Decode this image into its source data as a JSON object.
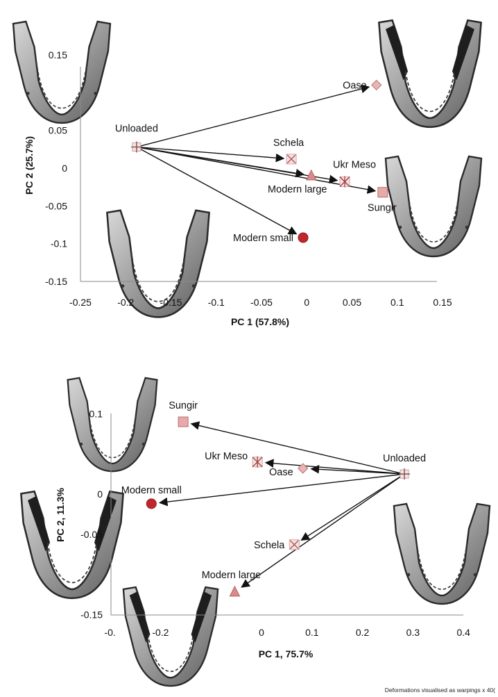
{
  "chart_data": [
    {
      "type": "scatter",
      "xlabel": "PC 1 (57.8%)",
      "ylabel": "PC 2 (25.7%)",
      "xlim": [
        -0.25,
        0.15
      ],
      "ylim": [
        -0.15,
        0.15
      ],
      "xticks": [
        "-0.25",
        "-0.2",
        "-0.15",
        "-0.1",
        "-0.05",
        "0",
        "0.05",
        "0.1",
        "0.15"
      ],
      "yticks": [
        "0.15",
        "0.05",
        "0",
        "-0.05",
        "-0.1",
        "-0.15"
      ],
      "origin": "Unloaded",
      "points": [
        {
          "label": "Unloaded",
          "x": -0.188,
          "y": 0.028,
          "marker": "plus"
        },
        {
          "label": "Oase",
          "x": 0.077,
          "y": 0.11,
          "marker": "diamond"
        },
        {
          "label": "Schela",
          "x": -0.017,
          "y": 0.012,
          "marker": "cross"
        },
        {
          "label": "Ukr Meso",
          "x": 0.042,
          "y": -0.018,
          "marker": "star"
        },
        {
          "label": "Modern large",
          "x": 0.005,
          "y": -0.01,
          "marker": "triangle"
        },
        {
          "label": "Sungir",
          "x": 0.084,
          "y": -0.032,
          "marker": "square"
        },
        {
          "label": "Modern small",
          "x": -0.004,
          "y": -0.092,
          "marker": "circle"
        }
      ]
    },
    {
      "type": "scatter",
      "xlabel": "PC 1, 75.7%",
      "ylabel": "PC 2, 11.3%",
      "xlim": [
        -0.3,
        0.4
      ],
      "ylim": [
        -0.15,
        0.1
      ],
      "xticks": [
        "-0.",
        "-0.2",
        "0",
        "0.1",
        "0.2",
        "0.3",
        "0.4"
      ],
      "yticks": [
        "0.1",
        "0",
        "-0.05",
        "-0.15"
      ],
      "origin": "Unloaded",
      "points": [
        {
          "label": "Unloaded",
          "x": 0.283,
          "y": 0.025,
          "marker": "plus"
        },
        {
          "label": "Sungir",
          "x": -0.155,
          "y": 0.09,
          "marker": "square"
        },
        {
          "label": "Ukr Meso",
          "x": -0.008,
          "y": 0.04,
          "marker": "star"
        },
        {
          "label": "Oase",
          "x": 0.082,
          "y": 0.032,
          "marker": "diamond"
        },
        {
          "label": "Modern small",
          "x": -0.218,
          "y": -0.012,
          "marker": "circle"
        },
        {
          "label": "Schela",
          "x": 0.065,
          "y": -0.063,
          "marker": "cross"
        },
        {
          "label": "Modern large",
          "x": -0.053,
          "y": -0.122,
          "marker": "triangle"
        }
      ]
    }
  ],
  "footnote": "Deformations visualised as warpings x 40("
}
